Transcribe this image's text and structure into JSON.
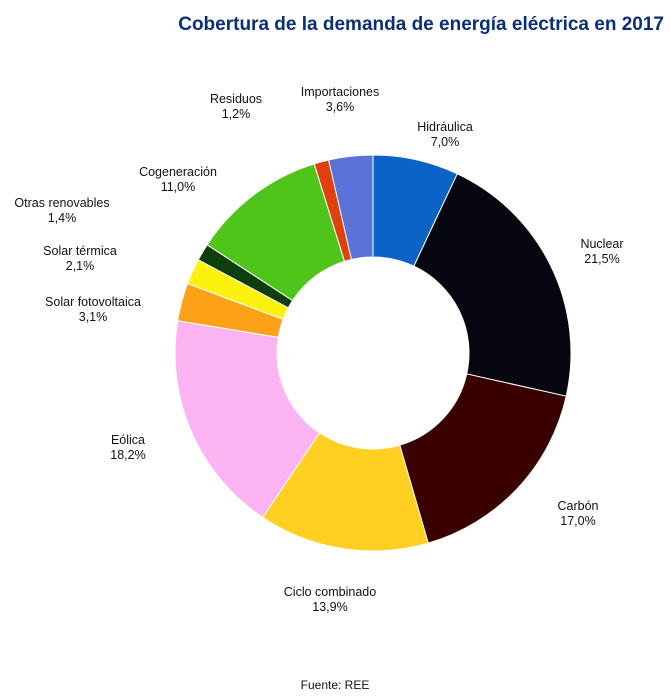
{
  "chart_data": {
    "type": "pie",
    "title": "Cobertura de la demanda de energía eléctrica en 2017",
    "source": "Fuente: REE",
    "unit": "%",
    "slices": [
      {
        "name": "Hidráulica",
        "value": 7.0,
        "label": "7,0%",
        "color": "#0b63c8"
      },
      {
        "name": "Nuclear",
        "value": 21.5,
        "label": "21,5%",
        "color": "#060611"
      },
      {
        "name": "Carbón",
        "value": 17.0,
        "label": "17,0%",
        "color": "#3a0000"
      },
      {
        "name": "Ciclo combinado",
        "value": 13.9,
        "label": "13,9%",
        "color": "#ffcf22"
      },
      {
        "name": "Eólica",
        "value": 18.2,
        "label": "18,2%",
        "color": "#fcb3f2"
      },
      {
        "name": "Solar fotovoltaica",
        "value": 3.1,
        "label": "3,1%",
        "color": "#fca118"
      },
      {
        "name": "Solar térmica",
        "value": 2.1,
        "label": "2,1%",
        "color": "#fdf20e"
      },
      {
        "name": "Otras renovables",
        "value": 1.4,
        "label": "1,4%",
        "color": "#0d3f0d"
      },
      {
        "name": "Cogeneración",
        "value": 11.0,
        "label": "11,0%",
        "color": "#4fc51b"
      },
      {
        "name": "Residuos",
        "value": 1.2,
        "label": "1,2%",
        "color": "#e0400e"
      },
      {
        "name": "Importaciones",
        "value": 3.6,
        "label": "3,6%",
        "color": "#5b72d8"
      }
    ]
  }
}
